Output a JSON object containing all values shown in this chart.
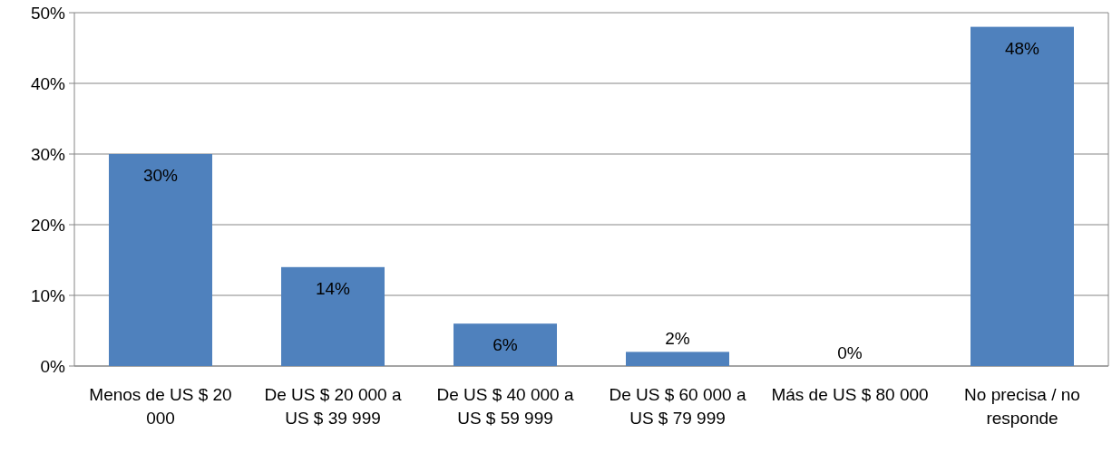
{
  "chart_data": {
    "type": "bar",
    "categories": [
      "Menos de US $ 20 000",
      "De US $ 20 000 a US $ 39 999",
      "De US $ 40 000 a US $ 59 999",
      "De US $ 60 000 a US $ 79 999",
      "Más de US $ 80 000",
      "No precisa / no responde"
    ],
    "values": [
      30,
      14,
      6,
      2,
      0,
      48
    ],
    "value_labels": [
      "30%",
      "14%",
      "6%",
      "2%",
      "0%",
      "48%"
    ],
    "color": "#4f81bd",
    "ylim": [
      0,
      50
    ],
    "yticks": [
      {
        "value": 0,
        "label": "0%"
      },
      {
        "value": 10,
        "label": "10%"
      },
      {
        "value": 20,
        "label": "20%"
      },
      {
        "value": 30,
        "label": "30%"
      },
      {
        "value": 40,
        "label": "40%"
      },
      {
        "value": 50,
        "label": "50%"
      }
    ],
    "grid": "y"
  }
}
